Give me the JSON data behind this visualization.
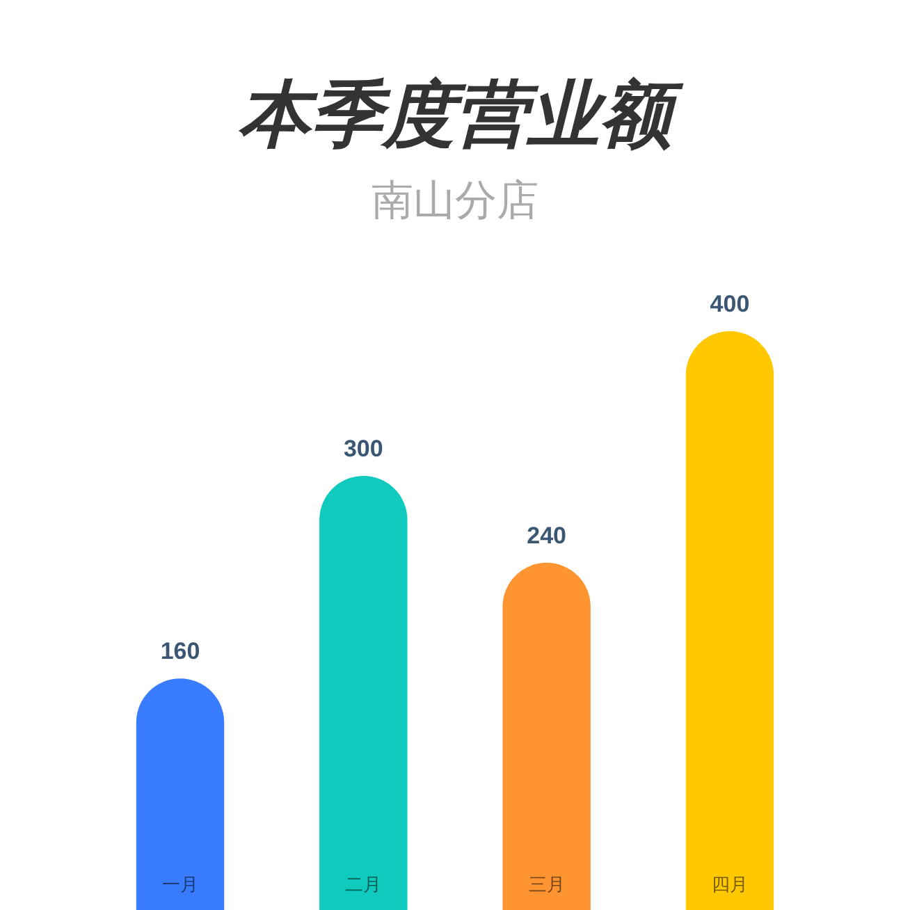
{
  "chart_data": {
    "type": "bar",
    "title": "本季度营业额",
    "subtitle": "南山分店",
    "categories": [
      "一月",
      "二月",
      "三月",
      "四月"
    ],
    "values": [
      160,
      300,
      240,
      400
    ],
    "colors": [
      "#3a7cff",
      "#10cbbd",
      "#ff9430",
      "#ffc800"
    ],
    "data_labels": true
  }
}
